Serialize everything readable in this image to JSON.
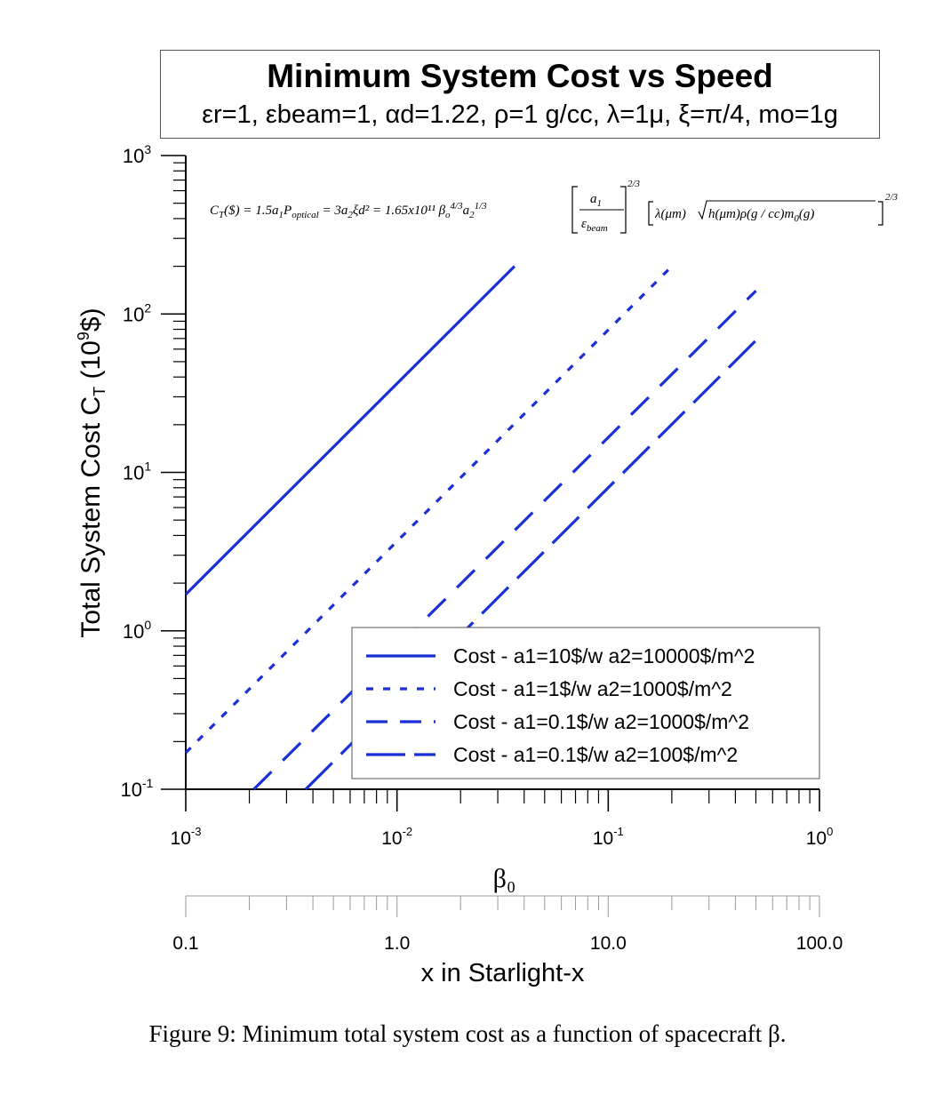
{
  "title": "Minimum System Cost vs Speed",
  "subtitle": "εr=1, εbeam=1, αd=1.22, ρ=1 g/cc, λ=1μ, ξ=π/4, mo=1g",
  "formula": "C_T($) = 1.5 a1 P_optical = 3 a2 ξ d^2 = 1.65x10^11 βo^4/3 a2^1/3 [a1/ε_beam]^2/3 [λ(μm) √(h(μm) ρ(g/cc) m0(g))]^2/3",
  "caption": "Figure 9: Minimum total system cost as a function of spacecraft β.",
  "chart_data": {
    "type": "line",
    "title": "Minimum System Cost vs Speed",
    "xlabel": "β₀",
    "ylabel": "Total System Cost C_T (10^9$)",
    "x_scale": "log",
    "y_scale": "log",
    "xlim": [
      0.001,
      1
    ],
    "ylim": [
      0.1,
      1000
    ],
    "x_ticks": [
      "10^-3",
      "10^-2",
      "10^-1",
      "10^0"
    ],
    "y_ticks": [
      "10^-1",
      "10^0",
      "10^1",
      "10^2",
      "10^3"
    ],
    "secondary_x_axis": {
      "label": "x in Starlight-x",
      "ticks": [
        "0.1",
        "1.0",
        "10.0",
        "100.0"
      ],
      "range": [
        0.1,
        100
      ]
    },
    "grid": false,
    "legend_position": "bottom-right",
    "color": "#1a2fd6",
    "series": [
      {
        "name": "Cost - a1=10$/w a2=10000$/m^2",
        "style": "solid",
        "x": [
          0.001,
          0.036
        ],
        "y": [
          1.7,
          200
        ]
      },
      {
        "name": "Cost - a1=1$/w a2=1000$/m^2",
        "style": "dotted",
        "x": [
          0.001,
          0.2
        ],
        "y": [
          0.17,
          200
        ]
      },
      {
        "name": "Cost - a1=0.1$/w a2=1000$/m^2",
        "style": "dashed",
        "x": [
          0.0021,
          0.5
        ],
        "y": [
          0.1,
          140
        ]
      },
      {
        "name": "Cost - a1=0.1$/w a2=100$/m^2",
        "style": "long-dashed",
        "x": [
          0.0037,
          0.5
        ],
        "y": [
          0.1,
          68
        ]
      }
    ]
  }
}
